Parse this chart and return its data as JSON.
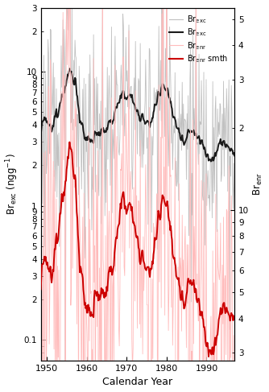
{
  "xlabel": "Calendar Year",
  "ylabel_left": "Br$_{\\rm exc}$ (ngg$^{-1}$)",
  "ylabel_right": "Br$_{\\rm enr}$",
  "xlim": [
    1948.5,
    1997
  ],
  "ylim_left": [
    0.07,
    30
  ],
  "ylim_right": [
    2.8,
    55
  ],
  "xticks": [
    1950,
    1960,
    1970,
    1980,
    1990
  ],
  "color_exc_raw": "#c0c0c0",
  "color_exc_smth": "#1a1a1a",
  "color_enr_raw": "#ffbbbb",
  "color_enr_smth": "#cc0000",
  "lw_raw": 0.6,
  "lw_smth": 1.4,
  "legend_lw_raw": 0.8,
  "legend_lw_smth": 1.5
}
